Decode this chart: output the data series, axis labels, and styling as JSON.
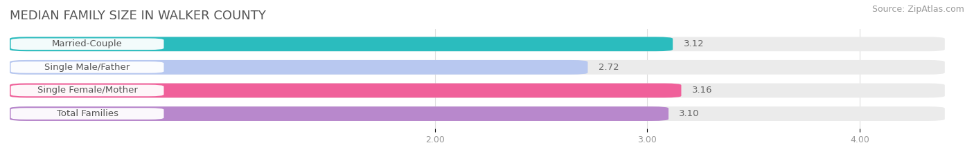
{
  "title": "MEDIAN FAMILY SIZE IN WALKER COUNTY",
  "source": "Source: ZipAtlas.com",
  "categories": [
    "Married-Couple",
    "Single Male/Father",
    "Single Female/Mother",
    "Total Families"
  ],
  "values": [
    3.12,
    2.72,
    3.16,
    3.1
  ],
  "bar_colors": [
    "#2bbcbe",
    "#b8c8f0",
    "#f0609a",
    "#b888cc"
  ],
  "background_color": "#ffffff",
  "bar_bg_color": "#ebebeb",
  "xmin": 0.0,
  "xmax": 4.4,
  "xticks": [
    2.0,
    3.0,
    4.0
  ],
  "xtick_labels": [
    "2.00",
    "3.00",
    "4.00"
  ],
  "title_fontsize": 13,
  "source_fontsize": 9,
  "label_fontsize": 9.5,
  "value_fontsize": 9.5,
  "bar_height": 0.62
}
